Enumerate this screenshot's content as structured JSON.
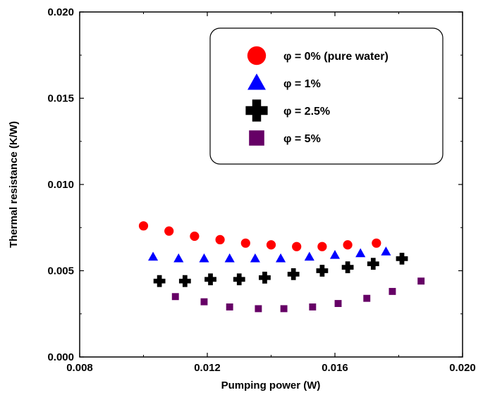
{
  "chart_data": {
    "type": "scatter",
    "title": "",
    "xlabel": "Pumping power (W)",
    "ylabel": "Thermal resistance (K/W)",
    "xlim": [
      0.008,
      0.02
    ],
    "ylim": [
      0.0,
      0.02
    ],
    "x_ticks": [
      "0.008",
      "0.012",
      "0.016",
      "0.020"
    ],
    "y_ticks": [
      "0.000",
      "0.005",
      "0.010",
      "0.015",
      "0.020"
    ],
    "grid": false,
    "legend_position": "top-right",
    "series": [
      {
        "name": "φ = 0% (pure water)",
        "marker": "circle",
        "color": "#ff0000",
        "x": [
          0.01,
          0.0108,
          0.0116,
          0.0124,
          0.0132,
          0.014,
          0.0148,
          0.0156,
          0.0164,
          0.0173
        ],
        "y": [
          0.0076,
          0.0073,
          0.007,
          0.0068,
          0.0066,
          0.0065,
          0.0064,
          0.0064,
          0.0065,
          0.0066
        ]
      },
      {
        "name": "φ = 1%",
        "marker": "triangle",
        "color": "#0000ff",
        "x": [
          0.0103,
          0.0111,
          0.0119,
          0.0127,
          0.0135,
          0.0143,
          0.0152,
          0.016,
          0.0168,
          0.0176
        ],
        "y": [
          0.0058,
          0.0057,
          0.0057,
          0.0057,
          0.0057,
          0.0057,
          0.0058,
          0.0059,
          0.006,
          0.0061
        ]
      },
      {
        "name": "φ = 2.5%",
        "marker": "plus",
        "color": "#000000",
        "x": [
          0.0105,
          0.0113,
          0.0121,
          0.013,
          0.0138,
          0.0147,
          0.0156,
          0.0164,
          0.0172,
          0.0181
        ],
        "y": [
          0.0044,
          0.0044,
          0.0045,
          0.0045,
          0.0046,
          0.0048,
          0.005,
          0.0052,
          0.0054,
          0.0057
        ]
      },
      {
        "name": "φ = 5%",
        "marker": "square",
        "color": "#660066",
        "x": [
          0.011,
          0.0119,
          0.0127,
          0.0136,
          0.0144,
          0.0153,
          0.0161,
          0.017,
          0.0178,
          0.0187
        ],
        "y": [
          0.0035,
          0.0032,
          0.0029,
          0.0028,
          0.0028,
          0.0029,
          0.0031,
          0.0034,
          0.0038,
          0.0044
        ]
      }
    ]
  }
}
